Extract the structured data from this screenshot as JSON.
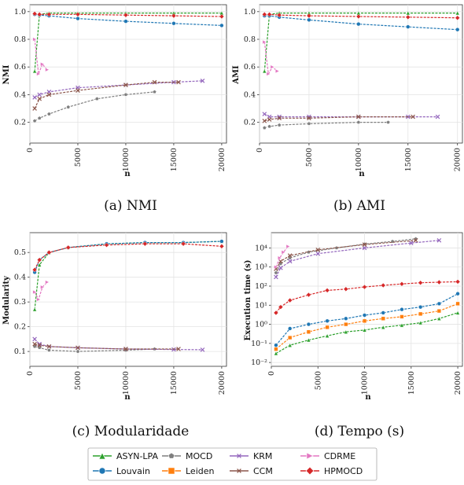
{
  "colors": {
    "ASYN-LPA": "#2ca02c",
    "Louvain": "#1f77b4",
    "MOCD": "#7f7f7f",
    "Leiden": "#ff7f0e",
    "KRM": "#9467bd",
    "CCM": "#8c564b",
    "CDRME": "#e377c2",
    "HPMOCD": "#d62728"
  },
  "legend": {
    "entries": [
      {
        "name": "ASYN-LPA",
        "marker": "triangle"
      },
      {
        "name": "Louvain",
        "marker": "circle"
      },
      {
        "name": "MOCD",
        "marker": "pentagon"
      },
      {
        "name": "Leiden",
        "marker": "square"
      },
      {
        "name": "KRM",
        "marker": "x"
      },
      {
        "name": "CCM",
        "marker": "x"
      },
      {
        "name": "CDRME",
        "marker": "triangle-right"
      },
      {
        "name": "HPMOCD",
        "marker": "diamond"
      }
    ]
  },
  "chart_data": [
    {
      "type": "line",
      "caption": "(a) NMI",
      "xlabel": "n",
      "ylabel": "NMI",
      "xlim": [
        0,
        20500
      ],
      "ylim": [
        0.05,
        1.05
      ],
      "xticks": [
        0,
        5000,
        10000,
        15000,
        20000
      ],
      "yticks": [
        0.2,
        0.4,
        0.6,
        0.8,
        1.0
      ],
      "ytick_labels": [
        "0.2",
        "0.4",
        "0.6",
        "0.8",
        "1.0"
      ],
      "log_y": false,
      "series": [
        {
          "name": "ASYN-LPA",
          "x": [
            500,
            1000,
            2000,
            5000,
            10000,
            15000,
            20000
          ],
          "y": [
            0.57,
            0.98,
            0.99,
            0.99,
            0.99,
            0.99,
            0.99
          ]
        },
        {
          "name": "Louvain",
          "x": [
            500,
            1000,
            2000,
            5000,
            10000,
            15000,
            20000
          ],
          "y": [
            0.98,
            0.975,
            0.97,
            0.95,
            0.93,
            0.915,
            0.9
          ]
        },
        {
          "name": "HPMOCD",
          "x": [
            500,
            1000,
            2000,
            5000,
            10000,
            15000,
            20000
          ],
          "y": [
            0.985,
            0.98,
            0.98,
            0.98,
            0.975,
            0.97,
            0.965
          ]
        },
        {
          "name": "MOCD",
          "x": [
            500,
            1000,
            2000,
            4000,
            7000,
            10000,
            13000
          ],
          "y": [
            0.21,
            0.23,
            0.26,
            0.31,
            0.37,
            0.4,
            0.42
          ]
        },
        {
          "name": "KRM",
          "x": [
            500,
            1000,
            2000,
            5000,
            10000,
            15000,
            18000
          ],
          "y": [
            0.38,
            0.4,
            0.42,
            0.45,
            0.47,
            0.49,
            0.5
          ]
        },
        {
          "name": "CCM",
          "x": [
            500,
            1000,
            2000,
            5000,
            10000,
            13000,
            15500
          ],
          "y": [
            0.3,
            0.37,
            0.4,
            0.43,
            0.47,
            0.49,
            0.49
          ]
        },
        {
          "name": "CDRME",
          "x": [
            500,
            900,
            1300,
            1800
          ],
          "y": [
            0.8,
            0.55,
            0.62,
            0.58
          ]
        }
      ]
    },
    {
      "type": "line",
      "caption": "(b) AMI",
      "xlabel": "n",
      "ylabel": "AMI",
      "xlim": [
        0,
        20500
      ],
      "ylim": [
        0.05,
        1.05
      ],
      "xticks": [
        0,
        5000,
        10000,
        15000,
        20000
      ],
      "yticks": [
        0.2,
        0.4,
        0.6,
        0.8,
        1.0
      ],
      "ytick_labels": [
        "0.2",
        "0.4",
        "0.6",
        "0.8",
        "1.0"
      ],
      "log_y": false,
      "series": [
        {
          "name": "ASYN-LPA",
          "x": [
            500,
            1000,
            2000,
            5000,
            10000,
            15000,
            20000
          ],
          "y": [
            0.57,
            0.98,
            0.99,
            0.99,
            0.99,
            0.99,
            0.99
          ]
        },
        {
          "name": "Louvain",
          "x": [
            500,
            1000,
            2000,
            5000,
            10000,
            15000,
            20000
          ],
          "y": [
            0.97,
            0.97,
            0.96,
            0.94,
            0.91,
            0.89,
            0.87
          ]
        },
        {
          "name": "HPMOCD",
          "x": [
            500,
            1000,
            2000,
            5000,
            10000,
            15000,
            20000
          ],
          "y": [
            0.98,
            0.98,
            0.975,
            0.97,
            0.965,
            0.96,
            0.955
          ]
        },
        {
          "name": "MOCD",
          "x": [
            500,
            1000,
            2000,
            5000,
            10000,
            13000
          ],
          "y": [
            0.16,
            0.17,
            0.18,
            0.19,
            0.2,
            0.2
          ]
        },
        {
          "name": "KRM",
          "x": [
            500,
            1000,
            2000,
            5000,
            10000,
            15000,
            18000
          ],
          "y": [
            0.26,
            0.24,
            0.24,
            0.24,
            0.24,
            0.24,
            0.24
          ]
        },
        {
          "name": "CCM",
          "x": [
            500,
            1000,
            2000,
            5000,
            10000,
            15500
          ],
          "y": [
            0.21,
            0.22,
            0.23,
            0.23,
            0.24,
            0.24
          ]
        },
        {
          "name": "CDRME",
          "x": [
            500,
            900,
            1300,
            1800
          ],
          "y": [
            0.78,
            0.55,
            0.6,
            0.57
          ]
        }
      ]
    },
    {
      "type": "line",
      "caption": "(c) Modularidade",
      "xlabel": "n",
      "ylabel": "Modularity",
      "xlim": [
        0,
        20500
      ],
      "ylim": [
        0.04,
        0.58
      ],
      "xticks": [
        0,
        5000,
        10000,
        15000,
        20000
      ],
      "yticks": [
        0.1,
        0.2,
        0.3,
        0.4,
        0.5
      ],
      "ytick_labels": [
        "0.1",
        "0.2",
        "0.3",
        "0.4",
        "0.5"
      ],
      "log_y": false,
      "series": [
        {
          "name": "ASYN-LPA",
          "x": [
            500,
            1000,
            2000,
            4000,
            8000,
            12000,
            16000,
            20000
          ],
          "y": [
            0.27,
            0.45,
            0.5,
            0.52,
            0.535,
            0.54,
            0.54,
            0.545
          ]
        },
        {
          "name": "Louvain",
          "x": [
            500,
            1000,
            2000,
            4000,
            8000,
            12000,
            16000,
            20000
          ],
          "y": [
            0.42,
            0.47,
            0.5,
            0.52,
            0.535,
            0.54,
            0.54,
            0.545
          ]
        },
        {
          "name": "HPMOCD",
          "x": [
            500,
            1000,
            2000,
            4000,
            8000,
            12000,
            16000,
            20000
          ],
          "y": [
            0.43,
            0.47,
            0.5,
            0.52,
            0.53,
            0.535,
            0.535,
            0.525
          ]
        },
        {
          "name": "MOCD",
          "x": [
            500,
            1000,
            2000,
            5000,
            10000,
            13000
          ],
          "y": [
            0.12,
            0.115,
            0.105,
            0.1,
            0.105,
            0.11
          ]
        },
        {
          "name": "KRM",
          "x": [
            500,
            1000,
            2000,
            5000,
            10000,
            15000,
            18000
          ],
          "y": [
            0.15,
            0.13,
            0.12,
            0.115,
            0.11,
            0.108,
            0.107
          ]
        },
        {
          "name": "CCM",
          "x": [
            500,
            1000,
            2000,
            5000,
            10000,
            15500
          ],
          "y": [
            0.13,
            0.125,
            0.12,
            0.115,
            0.11,
            0.11
          ]
        },
        {
          "name": "CDRME",
          "x": [
            500,
            900,
            1300,
            1800
          ],
          "y": [
            0.34,
            0.31,
            0.36,
            0.38
          ]
        }
      ]
    },
    {
      "type": "line",
      "caption": "(d) Tempo (s)",
      "xlabel": "n",
      "ylabel": "Execution time (s)",
      "xlim": [
        0,
        20500
      ],
      "ylim": [
        -2.2,
        4.8
      ],
      "xticks": [
        0,
        5000,
        10000,
        15000,
        20000
      ],
      "yticks": [
        -2,
        -1,
        0,
        1,
        2,
        3,
        4
      ],
      "ytick_labels": [
        "10⁻²",
        "10⁻¹",
        "10⁰",
        "10¹",
        "10²",
        "10³",
        "10⁴"
      ],
      "log_y": true,
      "series": [
        {
          "name": "ASYN-LPA",
          "x": [
            500,
            2000,
            4000,
            6000,
            8000,
            10000,
            12000,
            14000,
            16000,
            18000,
            20000
          ],
          "y": [
            0.03,
            0.08,
            0.15,
            0.25,
            0.4,
            0.5,
            0.7,
            0.9,
            1.2,
            2.0,
            4.0
          ]
        },
        {
          "name": "Louvain",
          "x": [
            500,
            2000,
            4000,
            6000,
            8000,
            10000,
            12000,
            14000,
            16000,
            18000,
            20000
          ],
          "y": [
            0.08,
            0.6,
            1.0,
            1.5,
            2.0,
            3.0,
            4.0,
            6.0,
            8.0,
            12.0,
            40.0
          ]
        },
        {
          "name": "Leiden",
          "x": [
            500,
            2000,
            4000,
            6000,
            8000,
            10000,
            12000,
            14000,
            16000,
            18000,
            20000
          ],
          "y": [
            0.05,
            0.2,
            0.4,
            0.7,
            1.0,
            1.5,
            2.0,
            2.5,
            3.5,
            5.0,
            12.0
          ]
        },
        {
          "name": "HPMOCD",
          "x": [
            500,
            1000,
            2000,
            4000,
            6000,
            8000,
            10000,
            12000,
            14000,
            16000,
            18000,
            20000
          ],
          "y": [
            4.0,
            8.0,
            18.0,
            35.0,
            60.0,
            70.0,
            90.0,
            110.0,
            130.0,
            150.0,
            160.0,
            170.0
          ]
        },
        {
          "name": "MOCD",
          "x": [
            500,
            1000,
            2000,
            4000,
            7000,
            10000,
            13000,
            15500
          ],
          "y": [
            500.0,
            1500.0,
            3000.0,
            6000.0,
            10000.0,
            16000.0,
            22000.0,
            30000.0
          ]
        },
        {
          "name": "KRM",
          "x": [
            500,
            1000,
            2000,
            5000,
            10000,
            15000,
            18000
          ],
          "y": [
            300.0,
            900.0,
            2000.0,
            5000.0,
            10000.0,
            18000.0,
            25000.0
          ]
        },
        {
          "name": "CCM",
          "x": [
            500,
            1000,
            2000,
            5000,
            10000,
            15500
          ],
          "y": [
            800.0,
            2000.0,
            4000.0,
            8000.0,
            15000.0,
            25000.0
          ]
        },
        {
          "name": "CDRME",
          "x": [
            500,
            900,
            1300,
            1800
          ],
          "y": [
            1000.0,
            3000.0,
            6000.0,
            12000.0
          ]
        }
      ]
    }
  ]
}
